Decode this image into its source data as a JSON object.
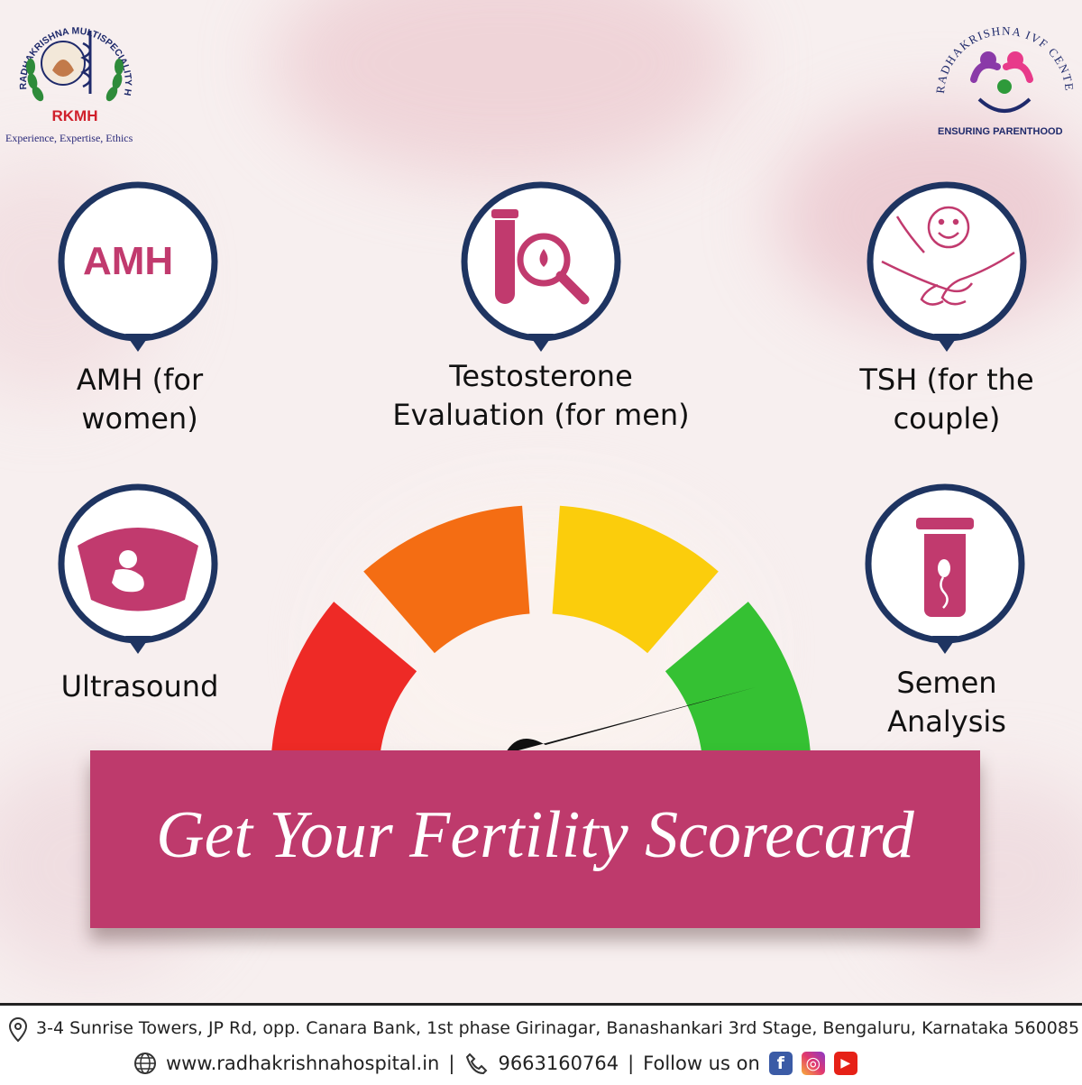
{
  "brand_left": {
    "logo_arc_text": "RADHAKRISHNA MULTISPECIALITY HOSPITAL",
    "logo_abbr": "RKMH",
    "tagline": "Experience, Expertise, Ethics"
  },
  "brand_right": {
    "name": "RADHAKRISHNA IVF CENTER",
    "tagline": "ENSURING PARENTHOOD"
  },
  "tests": {
    "amh": {
      "icon_text": "AMH",
      "line1": "AMH (for",
      "line2": "women)"
    },
    "testosterone": {
      "line1": "Testosterone",
      "line2": "Evaluation (for men)"
    },
    "tsh": {
      "line1": "TSH (for the",
      "line2": "couple)"
    },
    "ultrasound": {
      "line1": "Ultrasound"
    },
    "semen": {
      "line1": "Semen",
      "line2": "Analysis"
    }
  },
  "gauge": {
    "segment_colors": [
      "#ee2a26",
      "#f46d13",
      "#fbcd0c",
      "#35c133"
    ]
  },
  "banner": {
    "title": "Get Your Fertility Scorecard"
  },
  "footer": {
    "address": "3-4 Sunrise Towers, JP Rd, opp. Canara Bank, 1st phase Girinagar, Banashankari 3rd Stage, Bengaluru, Karnataka 560085",
    "website": "www.radhakrishnahospital.in",
    "phone": "9663160764",
    "follow": "Follow us on",
    "separator": "|"
  },
  "colors": {
    "accent": "#be3a6c",
    "ring": "#1e3461"
  }
}
